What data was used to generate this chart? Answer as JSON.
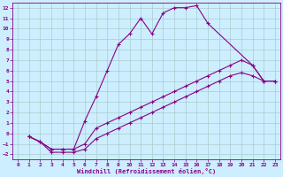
{
  "xlabel": "Windchill (Refroidissement éolien,°C)",
  "bg_color": "#cceeff",
  "line_color": "#880088",
  "grid_color": "#aacccc",
  "xlim": [
    -0.5,
    23.5
  ],
  "ylim": [
    -2.5,
    12.5
  ],
  "xticks": [
    0,
    1,
    2,
    3,
    4,
    5,
    6,
    7,
    8,
    9,
    10,
    11,
    12,
    13,
    14,
    15,
    16,
    17,
    18,
    19,
    20,
    21,
    22,
    23
  ],
  "yticks": [
    -2,
    -1,
    0,
    1,
    2,
    3,
    4,
    5,
    6,
    7,
    8,
    9,
    10,
    11,
    12
  ],
  "curve1_x": [
    1,
    2,
    3,
    4,
    5,
    6,
    7,
    8,
    9,
    10,
    11,
    12,
    13,
    14,
    15,
    16,
    17,
    21,
    22,
    23
  ],
  "curve1_y": [
    -0.3,
    -0.8,
    -1.5,
    -1.5,
    -1.5,
    1.2,
    3.5,
    6.0,
    8.5,
    9.5,
    11.0,
    9.5,
    11.5,
    12.0,
    12.0,
    12.2,
    10.5,
    6.5,
    5.0,
    5.0
  ],
  "curve2_x": [
    1,
    2,
    3,
    4,
    5,
    6,
    7,
    8,
    9,
    10,
    11,
    12,
    13,
    14,
    15,
    16,
    17,
    18,
    19,
    20,
    21,
    22,
    23
  ],
  "curve2_y": [
    -0.3,
    -0.8,
    -1.5,
    -1.5,
    -1.5,
    -1.0,
    0.5,
    1.0,
    1.5,
    2.0,
    2.5,
    3.0,
    3.5,
    4.0,
    4.5,
    5.0,
    5.5,
    6.0,
    6.5,
    7.0,
    6.5,
    5.0,
    5.0
  ],
  "curve3_x": [
    1,
    2,
    3,
    4,
    5,
    6,
    7,
    8,
    9,
    10,
    11,
    12,
    13,
    14,
    15,
    16,
    17,
    18,
    19,
    20,
    21,
    22,
    23
  ],
  "curve3_y": [
    -0.3,
    -0.8,
    -1.8,
    -1.8,
    -1.8,
    -1.5,
    -0.5,
    0.0,
    0.5,
    1.0,
    1.5,
    2.0,
    2.5,
    3.0,
    3.5,
    4.0,
    4.5,
    5.0,
    5.5,
    5.8,
    5.5,
    5.0,
    5.0
  ]
}
